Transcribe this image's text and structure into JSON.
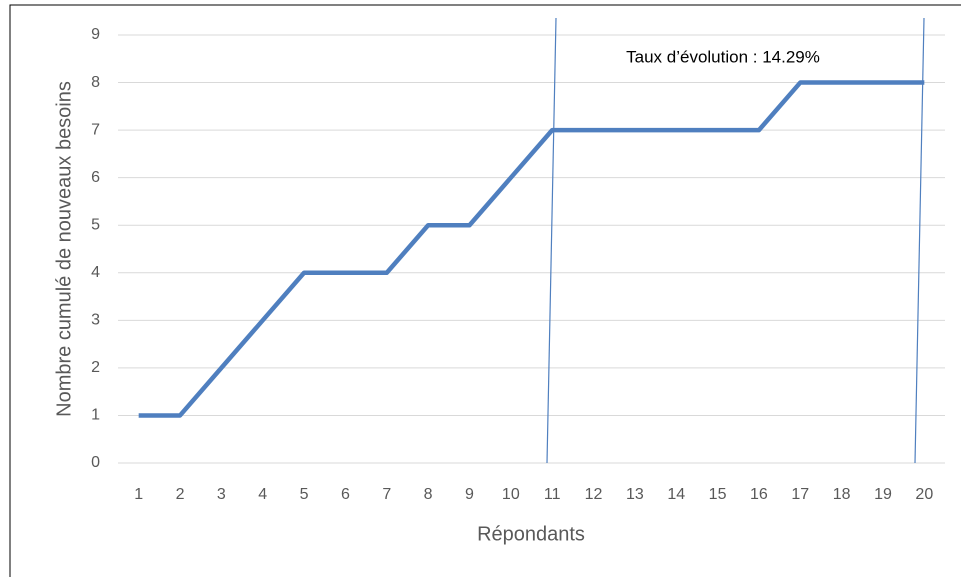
{
  "chart_data": {
    "type": "line",
    "y_label": "Nombre cumulé de nouveaux besoins",
    "x_label": "Répondants",
    "annotation": "Taux d’évolution : 14.29%",
    "categories": [
      "1",
      "2",
      "3",
      "4",
      "5",
      "6",
      "7",
      "8",
      "9",
      "10",
      "11",
      "12",
      "13",
      "14",
      "15",
      "16",
      "17",
      "18",
      "19",
      "20"
    ],
    "series": [
      {
        "color": "#4f7fbf",
        "values": [
          1,
          1,
          2,
          3,
          4,
          4,
          4,
          5,
          5,
          6,
          7,
          7,
          7,
          7,
          7,
          7,
          8,
          8,
          8,
          8
        ]
      }
    ],
    "ylim": [
      0,
      9
    ],
    "yticks": [
      0,
      1,
      2,
      3,
      4,
      5,
      6,
      7,
      8,
      9
    ],
    "grid": true
  }
}
